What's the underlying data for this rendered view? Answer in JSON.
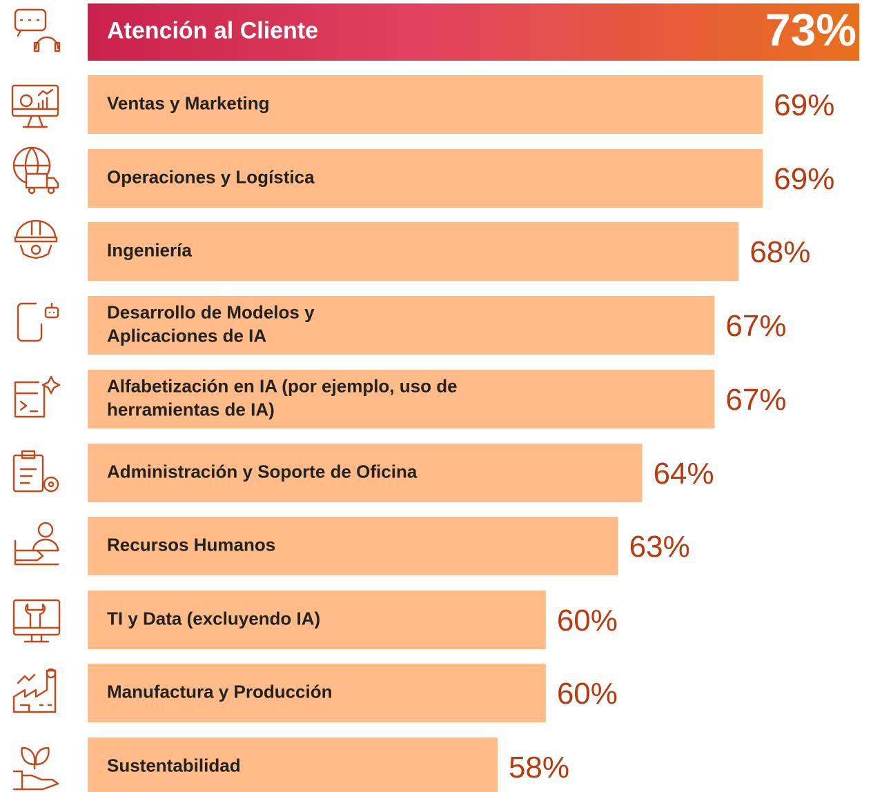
{
  "chart_data": {
    "type": "bar",
    "orientation": "horizontal",
    "categories": [
      [
        "Atención al Cliente"
      ],
      [
        "Ventas y Marketing"
      ],
      [
        "Operaciones y Logística"
      ],
      [
        "Ingeniería"
      ],
      [
        "Desarrollo de Modelos y",
        "Aplicaciones de IA"
      ],
      [
        "Alfabetización en IA (por ejemplo, uso de",
        "herramientas de IA)"
      ],
      [
        "Administración y Soporte de Oficina"
      ],
      [
        "Recursos Humanos"
      ],
      [
        "TI y Data (excluyendo IA)"
      ],
      [
        "Manufactura y Producción"
      ],
      [
        "Sustentabilidad"
      ]
    ],
    "values": [
      73,
      69,
      69,
      68,
      67,
      67,
      64,
      63,
      60,
      60,
      58
    ],
    "value_labels": [
      "73%",
      "69%",
      "69%",
      "68%",
      "67%",
      "67%",
      "64%",
      "63%",
      "60%",
      "60%",
      "58%"
    ],
    "color": "#ffbb88",
    "highlight_colors": [
      "#c9224c",
      "#e2435e",
      "#e8701c"
    ],
    "label_color": "#b83a0f",
    "xlim": [
      41,
      73
    ]
  }
}
